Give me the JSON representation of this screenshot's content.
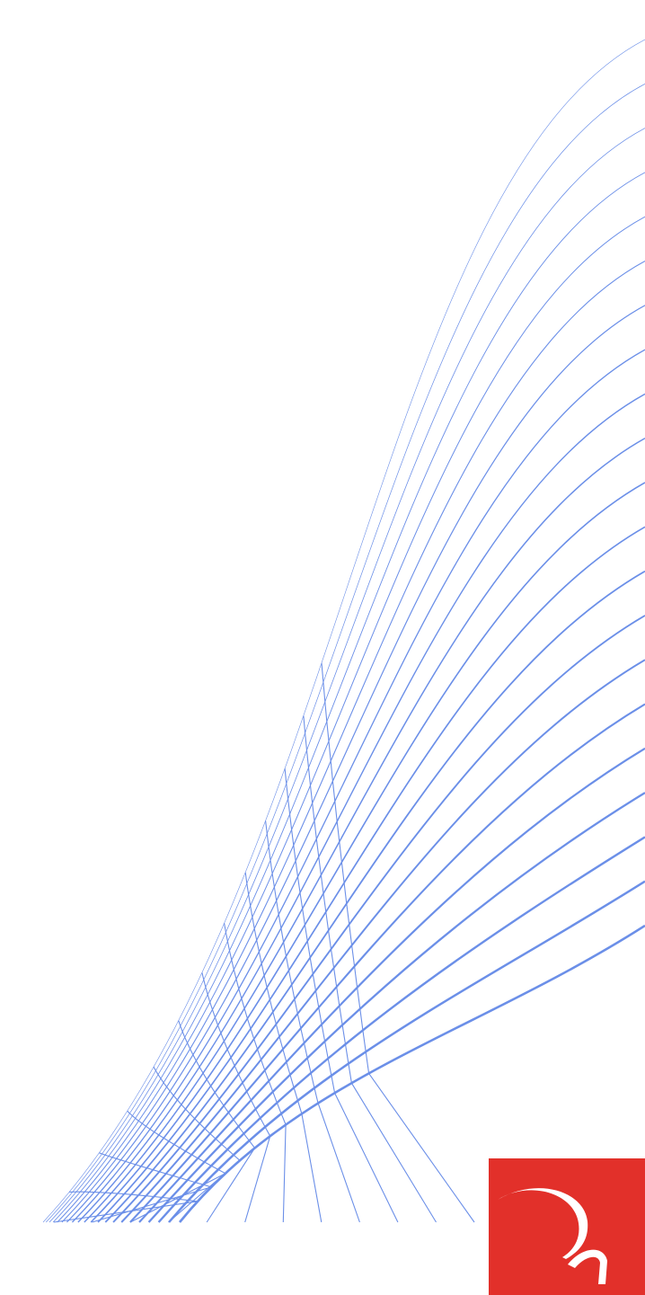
{
  "page": {
    "background_color": "#ffffff"
  },
  "artwork": {
    "description_icon": "wireframe-wave-graphic",
    "line_color": "#6b8fe8",
    "horizontal_curve_count": 21,
    "vertical_curve_count": 12
  },
  "logo": {
    "icon": "brand-swoosh-logo",
    "background_color": "#e2302a",
    "mark_color": "#ffffff"
  }
}
